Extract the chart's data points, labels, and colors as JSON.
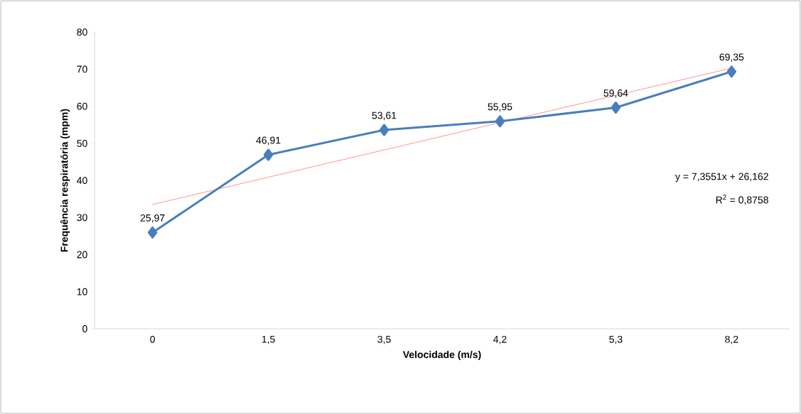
{
  "chart_data": {
    "type": "line",
    "xlabel": "Velocidade (m/s)",
    "ylabel": "Frequência respiratória (mpm)",
    "categories": [
      "0",
      "1,5",
      "3,5",
      "4,2",
      "5,3",
      "8,2"
    ],
    "ylim": [
      0,
      80
    ],
    "yticks": [
      0,
      10,
      20,
      30,
      40,
      50,
      60,
      70,
      80
    ],
    "series": [
      {
        "color": "#4a7ebb",
        "marker": "diamond",
        "line_style": "solid",
        "values": [
          25.97,
          46.91,
          53.61,
          55.95,
          59.64,
          69.35
        ],
        "value_labels": [
          "25,97",
          "46,91",
          "53,61",
          "55,95",
          "59,64",
          "69,35"
        ]
      },
      {
        "type": "line",
        "color": "#ff0000",
        "marker": "none",
        "line_style": "dotted",
        "values": [
          33.52,
          40.87,
          48.23,
          55.58,
          62.94,
          70.29
        ]
      }
    ],
    "annotations": [
      "y = 7,3551x + 26,162",
      "R$^{2}$ = 0,8758"
    ]
  }
}
